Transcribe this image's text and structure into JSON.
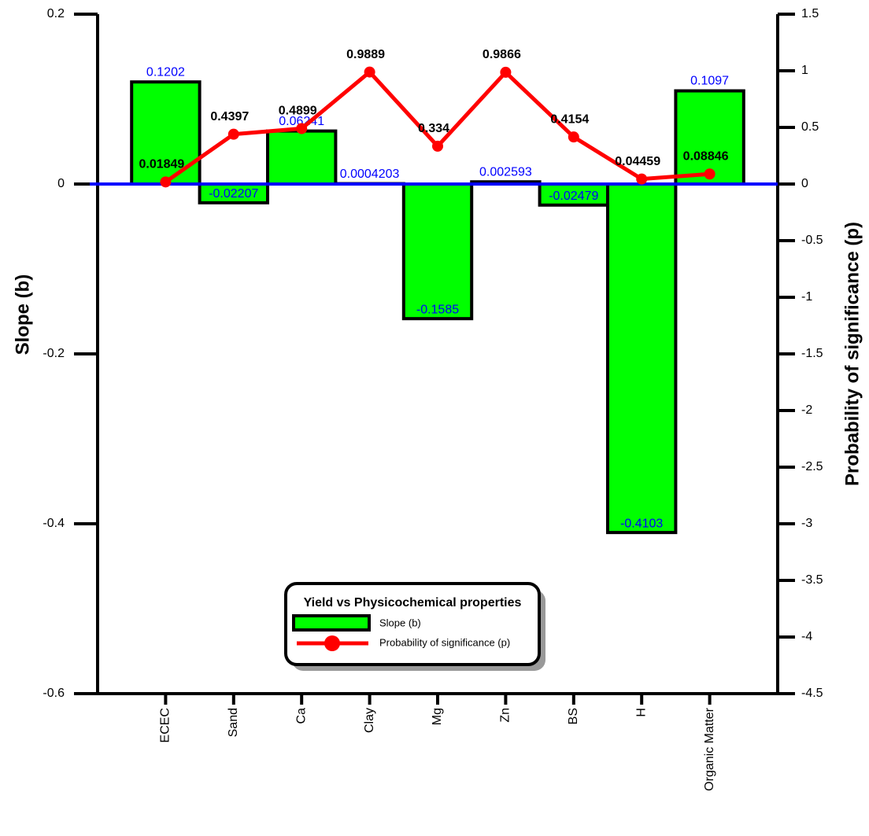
{
  "chart_data": {
    "type": "bar-line",
    "y_label": "Slope (b)",
    "y2_label": "Probability of significance (p)",
    "legend_title": "Yield vs Physicochemical properties",
    "categories": [
      "ECEC",
      "Sand",
      "Ca",
      "Clay",
      "Mg",
      "Zn",
      "BS",
      "H",
      "Organic Matter"
    ],
    "series": [
      {
        "name": "Slope (b)",
        "type": "bar",
        "color": "#00ff00",
        "label_color": "#0000ff",
        "values": [
          0.1202,
          -0.02207,
          0.06241,
          0.0004203,
          -0.1585,
          0.002593,
          -0.02479,
          -0.4103,
          0.1097
        ]
      },
      {
        "name": "Probability of significance (p)",
        "type": "line",
        "axis": "y2",
        "color": "#ff0000",
        "values": [
          0.01849,
          0.4397,
          0.4899,
          0.9889,
          0.334,
          0.9866,
          0.4154,
          0.04459,
          0.08846
        ]
      }
    ],
    "ylim": [
      -0.6,
      0.2
    ],
    "yticks": [
      0.2,
      0,
      -0.2,
      -0.4,
      -0.6
    ],
    "y2lim": [
      -4.5,
      1.5
    ],
    "y2ticks": [
      1.5,
      1,
      0.5,
      0,
      -0.5,
      -1,
      -1.5,
      -2,
      -2.5,
      -3,
      -3.5,
      -4,
      -4.5
    ],
    "zero_line_color": "#0000ff"
  }
}
